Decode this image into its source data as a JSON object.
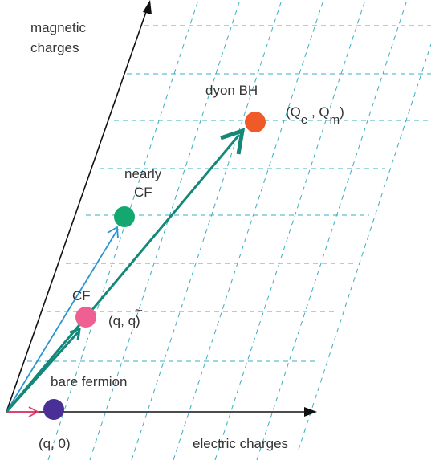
{
  "axes": {
    "vertical_label_line1": "magnetic",
    "vertical_label_line2": "charges",
    "horizontal_label": "electric charges"
  },
  "points": {
    "dyon_bh": {
      "label": "dyon BH",
      "color": "#f05a28"
    },
    "nearly_cf": {
      "label_line1": "nearly",
      "label_line2": "CF",
      "color": "#13a86f"
    },
    "cf": {
      "label": "CF",
      "color": "#ef5f91"
    },
    "bare_fermion": {
      "label": "bare fermion",
      "color": "#4a2f96"
    }
  },
  "coords": {
    "bare": {
      "open": "(q, 0)"
    },
    "cf": {
      "open": "(q, ",
      "var": "q",
      "tilde": "~",
      "close": ")"
    },
    "dyon": {
      "open": "(Q",
      "sub_e": "e",
      "sep": " , Q",
      "sub_m": "m",
      "close": ")"
    }
  },
  "colors": {
    "axis": "#111111",
    "grid": "#3aaec0",
    "teal_arrow": "#138879",
    "blue_arrow": "#2a95d0",
    "pink_arrow": "#e33d6d",
    "text": "#333333"
  }
}
